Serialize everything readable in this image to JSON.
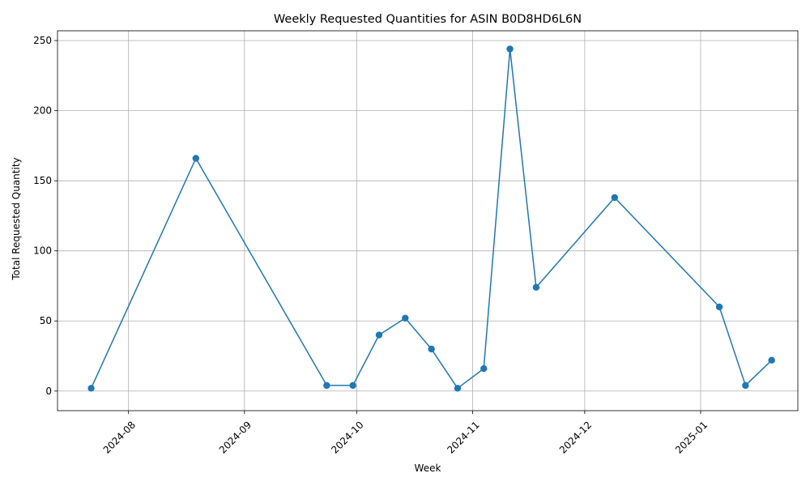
{
  "chart_data": {
    "type": "line",
    "title": "Weekly Requested Quantities for ASIN B0D8HD6L6N",
    "xlabel": "Week",
    "ylabel": "Total Requested Quantity",
    "grid": true,
    "ylim": [
      -14,
      257
    ],
    "xlim": [
      "2024-07-13",
      "2025-01-27"
    ],
    "x_ticks": [
      "2024-08",
      "2024-09",
      "2024-10",
      "2024-11",
      "2024-12",
      "2025-01"
    ],
    "y_ticks": [
      0,
      50,
      100,
      150,
      200,
      250
    ],
    "series": [
      {
        "color": "#1f77b4",
        "marker": "circle",
        "x": [
          "2024-07-22",
          "2024-08-19",
          "2024-09-23",
          "2024-09-30",
          "2024-10-07",
          "2024-10-14",
          "2024-10-21",
          "2024-10-28",
          "2024-11-04",
          "2024-11-11",
          "2024-11-18",
          "2024-12-09",
          "2025-01-06",
          "2025-01-13",
          "2025-01-20"
        ],
        "values": [
          2,
          166,
          4,
          4,
          40,
          52,
          30,
          2,
          16,
          244,
          74,
          138,
          60,
          4,
          22
        ]
      }
    ]
  }
}
